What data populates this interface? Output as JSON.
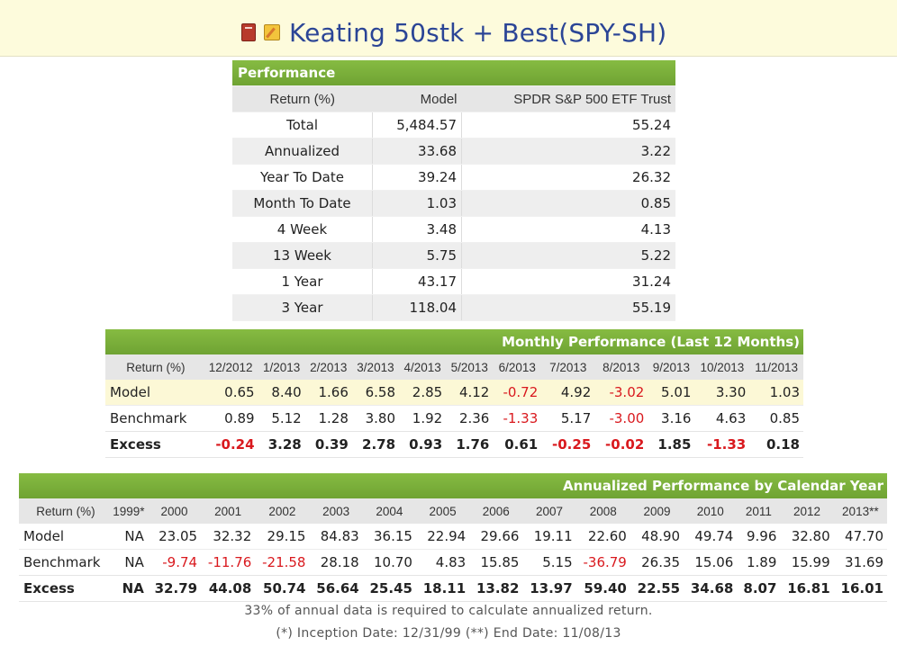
{
  "page": {
    "title": "Keating 50stk + Best(SPY-SH)",
    "icons": [
      "book-icon",
      "notepad-icon"
    ]
  },
  "performance": {
    "header": "Performance",
    "columns": [
      "Return (%)",
      "Model",
      "SPDR S&P 500 ETF Trust"
    ],
    "rows": [
      [
        "Total",
        "5,484.57",
        "55.24"
      ],
      [
        "Annualized",
        "33.68",
        "3.22"
      ],
      [
        "Year To Date",
        "39.24",
        "26.32"
      ],
      [
        "Month To Date",
        "1.03",
        "0.85"
      ],
      [
        "4 Week",
        "3.48",
        "4.13"
      ],
      [
        "13 Week",
        "5.75",
        "5.22"
      ],
      [
        "1 Year",
        "43.17",
        "31.24"
      ],
      [
        "3 Year",
        "118.04",
        "55.19"
      ]
    ]
  },
  "monthly": {
    "header": "Monthly Performance (Last 12 Months)",
    "columns": [
      "Return (%)",
      "12/2012",
      "1/2013",
      "2/2013",
      "3/2013",
      "4/2013",
      "5/2013",
      "6/2013",
      "7/2013",
      "8/2013",
      "9/2013",
      "10/2013",
      "11/2013"
    ],
    "rows": [
      {
        "label": "Model",
        "values": [
          "0.65",
          "8.40",
          "1.66",
          "6.58",
          "2.85",
          "4.12",
          "-0.72",
          "4.92",
          "-3.02",
          "5.01",
          "3.30",
          "1.03"
        ]
      },
      {
        "label": "Benchmark",
        "values": [
          "0.89",
          "5.12",
          "1.28",
          "3.80",
          "1.92",
          "2.36",
          "-1.33",
          "5.17",
          "-3.00",
          "3.16",
          "4.63",
          "0.85"
        ]
      },
      {
        "label": "Excess",
        "values": [
          "-0.24",
          "3.28",
          "0.39",
          "2.78",
          "0.93",
          "1.76",
          "0.61",
          "-0.25",
          "-0.02",
          "1.85",
          "-1.33",
          "0.18"
        ]
      }
    ]
  },
  "annual": {
    "header": "Annualized Performance by Calendar Year",
    "columns": [
      "Return (%)",
      "1999*",
      "2000",
      "2001",
      "2002",
      "2003",
      "2004",
      "2005",
      "2006",
      "2007",
      "2008",
      "2009",
      "2010",
      "2011",
      "2012",
      "2013**"
    ],
    "rows": [
      {
        "label": "Model",
        "values": [
          "NA",
          "23.05",
          "32.32",
          "29.15",
          "84.83",
          "36.15",
          "22.94",
          "29.66",
          "19.11",
          "22.60",
          "48.90",
          "49.74",
          "9.96",
          "32.80",
          "47.70"
        ]
      },
      {
        "label": "Benchmark",
        "values": [
          "NA",
          "-9.74",
          "-11.76",
          "-21.58",
          "28.18",
          "10.70",
          "4.83",
          "15.85",
          "5.15",
          "-36.79",
          "26.35",
          "15.06",
          "1.89",
          "15.99",
          "31.69"
        ]
      },
      {
        "label": "Excess",
        "values": [
          "NA",
          "32.79",
          "44.08",
          "50.74",
          "56.64",
          "25.45",
          "18.11",
          "13.82",
          "13.97",
          "59.40",
          "22.55",
          "34.68",
          "8.07",
          "16.81",
          "16.01"
        ]
      }
    ]
  },
  "notes": {
    "annual_data_note": "33% of annual data is required to calculate annualized return.",
    "dates_note": "(*) Inception Date: 12/31/99  (**) End Date: 11/08/13"
  },
  "colors": {
    "header_green": "#7db13c",
    "negative_red": "#d9191e",
    "title_blue": "#2b4596"
  }
}
